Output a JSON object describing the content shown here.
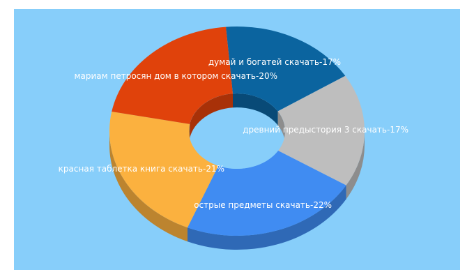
{
  "chart_data": {
    "type": "pie",
    "style": "3d-donut",
    "background_color": "#87cefa",
    "slices": [
      {
        "label": "думай и богатей скачать",
        "value": 17,
        "label_text": "думай и богатей скачать-17%",
        "color": "#0b649f",
        "side_color": "#084a77"
      },
      {
        "label": "древний предыстория 3 скачать",
        "value": 17,
        "label_text": "древний предыстория 3 скачать-17%",
        "color": "#bebebe",
        "side_color": "#8d8d8d"
      },
      {
        "label": "острые предметы скачать",
        "value": 22,
        "label_text": "острые предметы скачать-22%",
        "color": "#408cf2",
        "side_color": "#2f69b6"
      },
      {
        "label": "красная таблетка книга скачать",
        "value": 21,
        "label_text": "красная таблетка книга скачать-21%",
        "color": "#fbb13f",
        "side_color": "#bc842f"
      },
      {
        "label": "мариам петросян дом в котором скачать",
        "value": 20,
        "label_text": "мариам петросян дом в котором скачать-20%",
        "color": "#e0420b",
        "side_color": "#a83108"
      }
    ]
  }
}
